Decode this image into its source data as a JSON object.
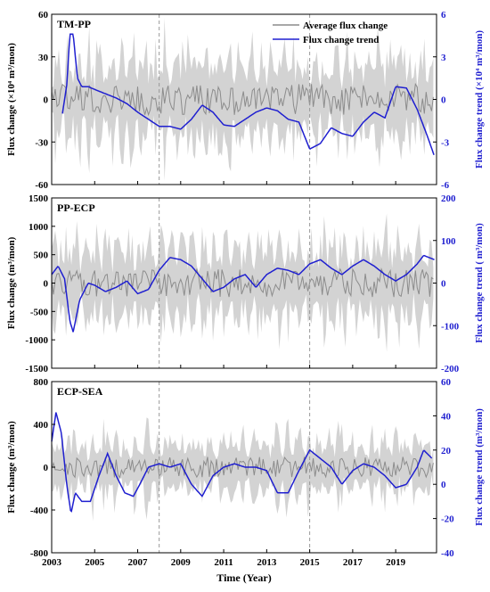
{
  "colors": {
    "band": "#d3d3d3",
    "average": "#8c8c8c",
    "trend": "#1f1fd0",
    "right_axis": "#1f1fd0",
    "reference_line": "#999999"
  },
  "x_axis": {
    "label": "Time (Year)",
    "range": [
      2003,
      2020.9
    ],
    "ticks": [
      "2003",
      "2005",
      "2007",
      "2009",
      "2011",
      "2013",
      "2015",
      "2017",
      "2019"
    ]
  },
  "legend": {
    "placement": "top-right",
    "items": [
      "Average flux change",
      "Flux change trend"
    ]
  },
  "reference_years": [
    2008,
    2015
  ],
  "chart_data": [
    {
      "type": "line",
      "title": "TM-PP",
      "ylabel": "Flux change (×10⁴ m³/mon)",
      "ylabel_right": "Flux change trend (×10⁴ m³/mon)",
      "ylim": [
        -60,
        60
      ],
      "yticks": [
        "60",
        "30",
        "0",
        "-30",
        "-60"
      ],
      "ylim_right": [
        -6,
        6
      ],
      "yticks_right": [
        "6",
        "3",
        "0",
        "-3",
        "-6"
      ],
      "series": [
        {
          "name": "Flux change trend",
          "axis": "right",
          "x": [
            2003.5,
            2003.7,
            2003.85,
            2004.0,
            2004.2,
            2004.4,
            2004.7,
            2005.0,
            2005.5,
            2006.0,
            2006.5,
            2007.0,
            2007.5,
            2008.0,
            2008.5,
            2009.0,
            2009.5,
            2010.0,
            2010.5,
            2011.0,
            2011.5,
            2012.0,
            2012.5,
            2013.0,
            2013.5,
            2014.0,
            2014.5,
            2015.0,
            2015.5,
            2016.0,
            2016.5,
            2017.0,
            2017.5,
            2018.0,
            2018.5,
            2019.0,
            2019.5,
            2020.0,
            2020.5,
            2020.8
          ],
          "values": [
            -1.0,
            1.0,
            4.6,
            4.6,
            1.5,
            0.9,
            0.9,
            0.7,
            0.4,
            0.1,
            -0.3,
            -0.9,
            -1.4,
            -1.9,
            -1.9,
            -2.1,
            -1.4,
            -0.4,
            -0.9,
            -1.8,
            -1.9,
            -1.4,
            -0.9,
            -0.6,
            -0.8,
            -1.4,
            -1.6,
            -3.5,
            -3.1,
            -2.0,
            -2.4,
            -2.6,
            -1.6,
            -0.9,
            -1.3,
            0.9,
            0.8,
            -0.7,
            -2.7,
            -4.0
          ]
        }
      ]
    },
    {
      "type": "line",
      "title": "PP-ECP",
      "ylabel": "Flux change (m³/mon)",
      "ylabel_right": "Flux change trend ( m³/mon)",
      "ylim": [
        -1500,
        1500
      ],
      "yticks": [
        "1500",
        "1000",
        "500",
        "0",
        "-500",
        "-1000",
        "-1500"
      ],
      "ylim_right": [
        -200,
        200
      ],
      "yticks_right": [
        "200",
        "100",
        "0",
        "-100",
        "-200"
      ],
      "series": [
        {
          "name": "Flux change trend",
          "axis": "right",
          "x": [
            2003.0,
            2003.3,
            2003.6,
            2003.85,
            2004.0,
            2004.3,
            2004.7,
            2005.0,
            2005.5,
            2006.0,
            2006.5,
            2007.0,
            2007.5,
            2008.0,
            2008.5,
            2009.0,
            2009.5,
            2010.0,
            2010.5,
            2011.0,
            2011.5,
            2012.0,
            2012.5,
            2013.0,
            2013.5,
            2014.0,
            2014.5,
            2015.0,
            2015.5,
            2016.0,
            2016.5,
            2017.0,
            2017.5,
            2018.0,
            2018.5,
            2019.0,
            2019.5,
            2020.0,
            2020.3,
            2020.8
          ],
          "values": [
            20,
            40,
            10,
            -90,
            -115,
            -40,
            0,
            -5,
            -20,
            -10,
            5,
            -25,
            -15,
            30,
            60,
            55,
            40,
            10,
            -20,
            -10,
            10,
            20,
            -10,
            20,
            35,
            30,
            20,
            45,
            55,
            35,
            20,
            40,
            55,
            40,
            20,
            5,
            20,
            45,
            65,
            55
          ]
        }
      ]
    },
    {
      "type": "line",
      "title": "ECP-SEA",
      "ylabel": "Flux change (m³/mon)",
      "ylabel_right": "Flux change trend (m³/mon)",
      "ylim": [
        -800,
        800
      ],
      "yticks": [
        "800",
        "400",
        "0",
        "-400",
        "-800"
      ],
      "ylim_right": [
        -40,
        60
      ],
      "yticks_right": [
        "60",
        "40",
        "20",
        "0",
        "-20",
        "-40"
      ],
      "series": [
        {
          "name": "Flux change trend",
          "axis": "right",
          "x": [
            2003.0,
            2003.2,
            2003.45,
            2003.7,
            2003.9,
            2004.1,
            2004.4,
            2004.8,
            2005.2,
            2005.6,
            2006.0,
            2006.4,
            2006.8,
            2007.1,
            2007.5,
            2008.0,
            2008.5,
            2009.0,
            2009.5,
            2010.0,
            2010.5,
            2011.0,
            2011.5,
            2012.0,
            2012.5,
            2013.0,
            2013.5,
            2014.0,
            2014.5,
            2015.0,
            2015.5,
            2016.0,
            2016.5,
            2017.0,
            2017.5,
            2018.0,
            2018.5,
            2019.0,
            2019.5,
            2020.0,
            2020.3,
            2020.7
          ],
          "values": [
            25,
            42,
            30,
            0,
            -17,
            -5,
            -10,
            -10,
            5,
            18,
            5,
            -5,
            -7,
            0,
            10,
            12,
            10,
            12,
            0,
            -7,
            5,
            10,
            12,
            10,
            10,
            8,
            -5,
            -5,
            8,
            20,
            15,
            10,
            0,
            8,
            12,
            10,
            5,
            -2,
            0,
            10,
            20,
            15
          ]
        }
      ]
    }
  ]
}
